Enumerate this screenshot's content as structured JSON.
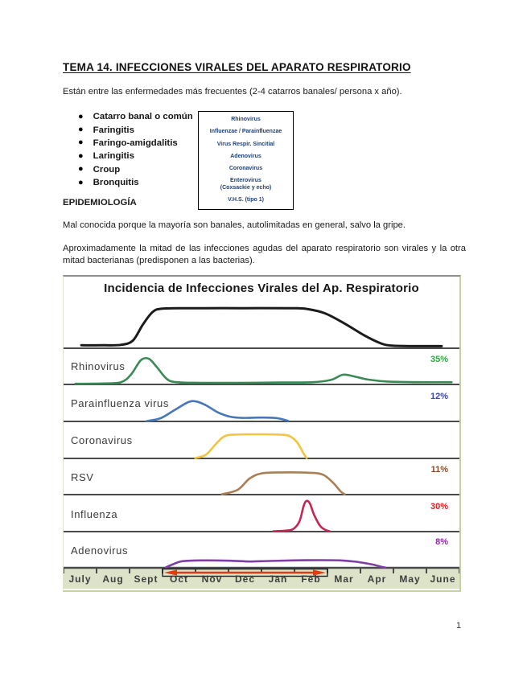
{
  "doc": {
    "title": "TEMA 14. INFECCIONES VIRALES DEL APARATO RESPIRATORIO",
    "intro": "Están entre las enfermedades más frecuentes (2-4 catarros banales/ persona x año).",
    "bullet_icon": "●",
    "bullets": [
      "Catarro banal o común",
      "Faringitis",
      "Faringo-amigdalitis",
      "Laringitis",
      "Croup",
      "Bronquitis"
    ],
    "virus_box": [
      "Rhinovirus",
      "Influenzae / Parainfluenzae",
      "Virus Respir. Sincitial",
      "Adenovirus",
      "Coronavirus",
      "Enterovirus\n(Coxsackie y echo)",
      "V.H.S. (tipo 1)"
    ],
    "epi_heading": "EPIDEMIOLOGÍA",
    "p1": "Mal conocida porque la mayoría son banales, autolimitadas en general, salvo la gripe.",
    "p2": "Aproximadamente la mitad de las infecciones agudas del aparato respiratorio son virales y la otra mitad bacterianas (predisponen a las bacterias).",
    "page_number": "1"
  },
  "chart_data": {
    "type": "line",
    "title": "Incidencia de Infecciones Virales del Ap. Respiratorio",
    "xlabel": "",
    "ylabel": "",
    "note": "Seven stacked seasonal-incidence curves; y is relative intensity 0-1 per row (no numeric axis shown); x spans July to June.",
    "x_categories": [
      "July",
      "Aug",
      "Sept",
      "Oct",
      "Nov",
      "Dec",
      "Jan",
      "Feb",
      "Mar",
      "Apr",
      "May",
      "June"
    ],
    "axis": {
      "strip_color": "#dde3c8",
      "line_color": "#4a4a4a",
      "tick_color": "#4a4a4a",
      "annotation": {
        "from": "Oct",
        "to": "Feb",
        "shape": "double-arrow-bracket",
        "color": "#e33b10"
      }
    },
    "rows": [
      {
        "name": "total-incidence",
        "label": "",
        "pct": null,
        "color": "#1b1b1b",
        "points": [
          [
            0.045,
            0.07
          ],
          [
            0.1,
            0.07
          ],
          [
            0.145,
            0.08
          ],
          [
            0.175,
            0.18
          ],
          [
            0.2,
            0.55
          ],
          [
            0.225,
            0.85
          ],
          [
            0.25,
            0.93
          ],
          [
            0.32,
            0.94
          ],
          [
            0.45,
            0.94
          ],
          [
            0.58,
            0.94
          ],
          [
            0.615,
            0.92
          ],
          [
            0.66,
            0.82
          ],
          [
            0.71,
            0.58
          ],
          [
            0.76,
            0.3
          ],
          [
            0.8,
            0.12
          ],
          [
            0.83,
            0.06
          ],
          [
            0.89,
            0.05
          ],
          [
            0.955,
            0.05
          ]
        ]
      },
      {
        "name": "rhinovirus",
        "label": "Rhinovirus",
        "pct": "35%",
        "pct_color": "#2ea83e",
        "color": "#3a8a56",
        "points": [
          [
            0.03,
            0.02
          ],
          [
            0.1,
            0.03
          ],
          [
            0.145,
            0.07
          ],
          [
            0.17,
            0.3
          ],
          [
            0.195,
            0.75
          ],
          [
            0.215,
            0.8
          ],
          [
            0.235,
            0.55
          ],
          [
            0.26,
            0.18
          ],
          [
            0.285,
            0.07
          ],
          [
            0.35,
            0.05
          ],
          [
            0.45,
            0.05
          ],
          [
            0.55,
            0.06
          ],
          [
            0.63,
            0.07
          ],
          [
            0.675,
            0.14
          ],
          [
            0.705,
            0.3
          ],
          [
            0.73,
            0.26
          ],
          [
            0.77,
            0.15
          ],
          [
            0.82,
            0.09
          ],
          [
            0.9,
            0.07
          ],
          [
            0.98,
            0.07
          ]
        ]
      },
      {
        "name": "parainfluenza-virus",
        "label": "Parainfluenza virus",
        "pct": "12%",
        "pct_color": "#3a45c0",
        "color": "#4677b8",
        "points": [
          [
            0.21,
            0.01
          ],
          [
            0.245,
            0.1
          ],
          [
            0.28,
            0.35
          ],
          [
            0.315,
            0.6
          ],
          [
            0.335,
            0.62
          ],
          [
            0.36,
            0.5
          ],
          [
            0.39,
            0.28
          ],
          [
            0.42,
            0.15
          ],
          [
            0.45,
            0.11
          ],
          [
            0.5,
            0.12
          ],
          [
            0.54,
            0.1
          ],
          [
            0.567,
            0.02
          ]
        ]
      },
      {
        "name": "coronavirus",
        "label": "Coronavirus",
        "pct": null,
        "color": "#f3c440",
        "points": [
          [
            0.333,
            0.01
          ],
          [
            0.36,
            0.12
          ],
          [
            0.385,
            0.45
          ],
          [
            0.405,
            0.68
          ],
          [
            0.43,
            0.74
          ],
          [
            0.5,
            0.75
          ],
          [
            0.545,
            0.74
          ],
          [
            0.57,
            0.7
          ],
          [
            0.59,
            0.5
          ],
          [
            0.605,
            0.18
          ],
          [
            0.614,
            0.01
          ]
        ]
      },
      {
        "name": "rsv",
        "label": "RSV",
        "pct": "11%",
        "pct_color": "#8d4a22",
        "color": "#aa7f55",
        "points": [
          [
            0.4,
            0.01
          ],
          [
            0.44,
            0.15
          ],
          [
            0.47,
            0.5
          ],
          [
            0.5,
            0.66
          ],
          [
            0.55,
            0.69
          ],
          [
            0.62,
            0.68
          ],
          [
            0.655,
            0.62
          ],
          [
            0.68,
            0.38
          ],
          [
            0.7,
            0.1
          ],
          [
            0.71,
            0.01
          ]
        ]
      },
      {
        "name": "influenza",
        "label": "Influenza",
        "pct": "30%",
        "pct_color": "#ea1c1c",
        "color": "#c32753",
        "points": [
          [
            0.53,
            0.01
          ],
          [
            0.56,
            0.03
          ],
          [
            0.58,
            0.08
          ],
          [
            0.596,
            0.32
          ],
          [
            0.606,
            0.78
          ],
          [
            0.613,
            0.95
          ],
          [
            0.622,
            0.88
          ],
          [
            0.633,
            0.52
          ],
          [
            0.648,
            0.18
          ],
          [
            0.662,
            0.05
          ],
          [
            0.672,
            0.01
          ]
        ]
      },
      {
        "name": "adenovirus",
        "label": "Adenovirus",
        "pct": "8%",
        "pct_color": "#9326ad",
        "color": "#7d3fa4",
        "points": [
          [
            0.258,
            0.01
          ],
          [
            0.275,
            0.12
          ],
          [
            0.3,
            0.24
          ],
          [
            0.35,
            0.27
          ],
          [
            0.42,
            0.26
          ],
          [
            0.47,
            0.23
          ],
          [
            0.52,
            0.25
          ],
          [
            0.58,
            0.27
          ],
          [
            0.65,
            0.28
          ],
          [
            0.7,
            0.27
          ],
          [
            0.74,
            0.22
          ],
          [
            0.78,
            0.12
          ],
          [
            0.805,
            0.03
          ],
          [
            0.813,
            0.01
          ]
        ]
      }
    ]
  }
}
